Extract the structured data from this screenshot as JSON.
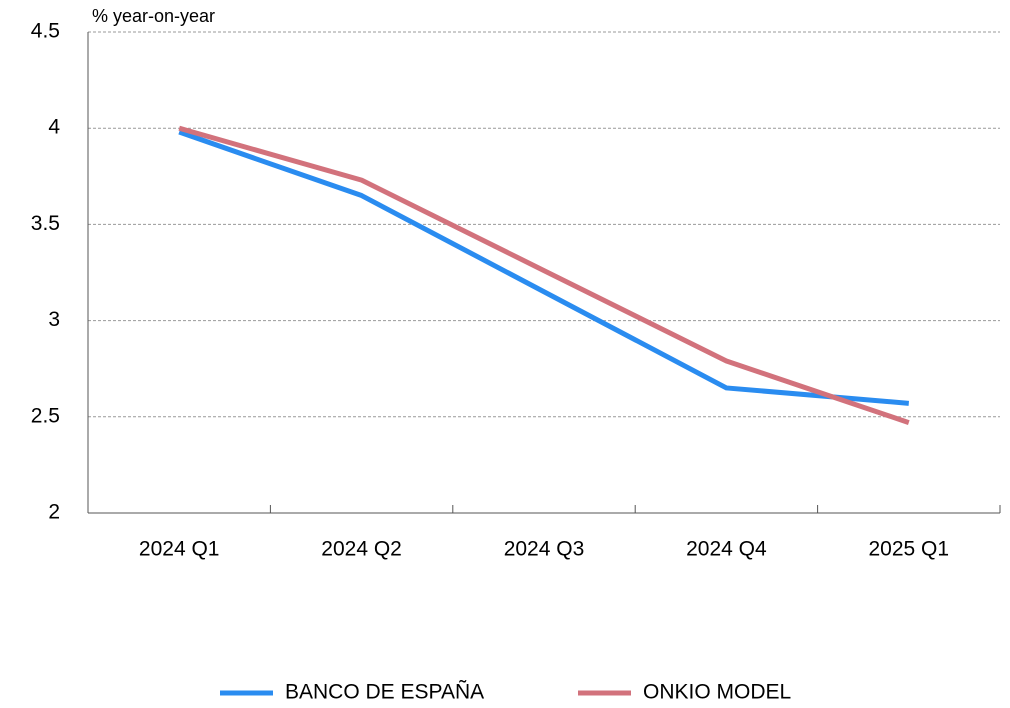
{
  "chart_data": {
    "type": "line",
    "y_axis_label": "% year-on-year",
    "categories": [
      "2024 Q1",
      "2024 Q2",
      "2024 Q3",
      "2024 Q4",
      "2025 Q1"
    ],
    "series": [
      {
        "name": "BANCO DE ESPAÑA",
        "color": "#2a8cf0",
        "values": [
          3.98,
          3.65,
          3.15,
          2.65,
          2.57
        ]
      },
      {
        "name": "ONKIO MODEL",
        "color": "#d2727c",
        "values": [
          4.0,
          3.73,
          3.26,
          2.79,
          2.47
        ]
      }
    ],
    "ylim": [
      2,
      4.5
    ],
    "yticks": [
      2,
      2.5,
      3,
      3.5,
      4,
      4.5
    ],
    "grid": true,
    "legend": "bottom"
  }
}
